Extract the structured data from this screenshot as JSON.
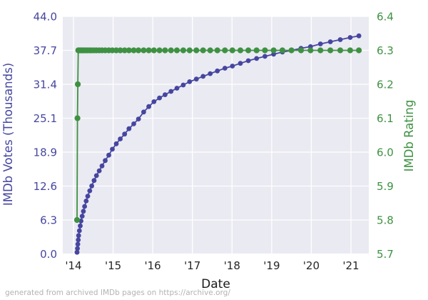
{
  "chart_data": {
    "type": "line",
    "title": "",
    "xlabel": "Date",
    "ylabel_left": "IMDb Votes (Thousands)",
    "ylabel_right": "IMDb Rating",
    "footer": "generated from archived IMDb pages on https://archive.org/",
    "plot_bg": "#eaeaf2",
    "grid_color": "#ffffff",
    "x_axis": {
      "tick_labels": [
        "'14",
        "'15",
        "'16",
        "'17",
        "'18",
        "'19",
        "'20",
        "'21"
      ],
      "tick_years": [
        2014,
        2015,
        2016,
        2017,
        2018,
        2019,
        2020,
        2021
      ],
      "range": [
        2013.73,
        2021.45
      ],
      "color": "#262626"
    },
    "y_left": {
      "tick_labels": [
        "0.0",
        "6.3",
        "12.6",
        "18.9",
        "25.1",
        "31.4",
        "37.7",
        "44.0"
      ],
      "tick_values": [
        0.0,
        6.3,
        12.6,
        18.9,
        25.1,
        31.4,
        37.7,
        44.0
      ],
      "range": [
        0,
        44.4
      ],
      "color": "#4646a0"
    },
    "y_right": {
      "tick_labels": [
        "5.7",
        "5.8",
        "5.9",
        "6.0",
        "6.1",
        "6.2",
        "6.3",
        "6.4"
      ],
      "tick_values": [
        5.7,
        5.8,
        5.9,
        6.0,
        6.1,
        6.2,
        6.3,
        6.4
      ],
      "range": [
        5.7,
        6.4
      ],
      "color": "#3f9142"
    },
    "series": [
      {
        "name": "IMDb Votes (Thousands)",
        "axis": "left",
        "color": "#4646a0",
        "marker_radius": 3.4,
        "x": [
          2014.09,
          2014.1,
          2014.11,
          2014.12,
          2014.13,
          2014.15,
          2014.17,
          2014.19,
          2014.22,
          2014.25,
          2014.28,
          2014.32,
          2014.36,
          2014.41,
          2014.46,
          2014.52,
          2014.58,
          2014.65,
          2014.72,
          2014.8,
          2014.89,
          2014.98,
          2015.08,
          2015.18,
          2015.29,
          2015.4,
          2015.52,
          2015.64,
          2015.77,
          2015.9,
          2016.03,
          2016.17,
          2016.31,
          2016.46,
          2016.61,
          2016.77,
          2016.93,
          2017.1,
          2017.27,
          2017.45,
          2017.63,
          2017.82,
          2018.01,
          2018.21,
          2018.41,
          2018.62,
          2018.83,
          2019.05,
          2019.27,
          2019.5,
          2019.74,
          2019.98,
          2020.23,
          2020.48,
          2020.73,
          2020.98,
          2021.2
        ],
        "y": [
          0.3,
          1.0,
          1.8,
          2.6,
          3.4,
          4.3,
          5.2,
          6.1,
          7.0,
          7.9,
          8.8,
          9.8,
          10.7,
          11.7,
          12.6,
          13.6,
          14.5,
          15.4,
          16.3,
          17.3,
          18.3,
          19.4,
          20.4,
          21.3,
          22.2,
          23.2,
          24.1,
          25.0,
          26.3,
          27.3,
          28.2,
          28.9,
          29.5,
          30.1,
          30.7,
          31.3,
          31.9,
          32.4,
          32.9,
          33.4,
          33.9,
          34.4,
          34.8,
          35.3,
          35.8,
          36.2,
          36.6,
          37.0,
          37.4,
          37.7,
          38.1,
          38.4,
          38.9,
          39.3,
          39.7,
          40.1,
          40.4
        ]
      },
      {
        "name": "IMDb Rating",
        "axis": "right",
        "color": "#3f9142",
        "marker_radius": 4.1,
        "x": [
          2014.09,
          2014.1,
          2014.11,
          2014.12,
          2014.13,
          2014.15,
          2014.17,
          2014.19,
          2014.22,
          2014.25,
          2014.28,
          2014.32,
          2014.36,
          2014.41,
          2014.46,
          2014.52,
          2014.58,
          2014.65,
          2014.72,
          2014.8,
          2014.89,
          2014.98,
          2015.08,
          2015.18,
          2015.29,
          2015.4,
          2015.52,
          2015.64,
          2015.77,
          2015.9,
          2016.03,
          2016.17,
          2016.31,
          2016.46,
          2016.61,
          2016.77,
          2016.93,
          2017.1,
          2017.27,
          2017.45,
          2017.63,
          2017.82,
          2018.01,
          2018.21,
          2018.41,
          2018.62,
          2018.83,
          2019.05,
          2019.27,
          2019.5,
          2019.74,
          2019.98,
          2020.23,
          2020.48,
          2020.73,
          2020.98,
          2021.2
        ],
        "y": [
          5.8,
          6.1,
          6.2,
          6.3,
          6.3,
          6.3,
          6.3,
          6.3,
          6.3,
          6.3,
          6.3,
          6.3,
          6.3,
          6.3,
          6.3,
          6.3,
          6.3,
          6.3,
          6.3,
          6.3,
          6.3,
          6.3,
          6.3,
          6.3,
          6.3,
          6.3,
          6.3,
          6.3,
          6.3,
          6.3,
          6.3,
          6.3,
          6.3,
          6.3,
          6.3,
          6.3,
          6.3,
          6.3,
          6.3,
          6.3,
          6.3,
          6.3,
          6.3,
          6.3,
          6.3,
          6.3,
          6.3,
          6.3,
          6.3,
          6.3,
          6.3,
          6.3,
          6.3,
          6.3,
          6.3,
          6.3,
          6.3
        ]
      }
    ],
    "legend": null
  }
}
